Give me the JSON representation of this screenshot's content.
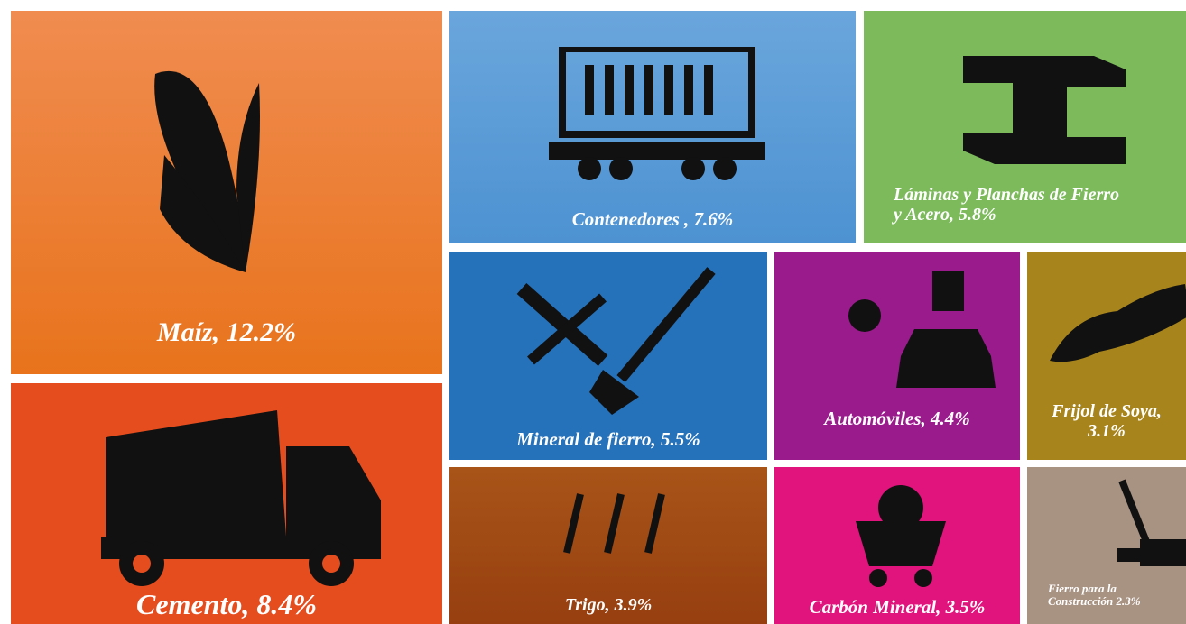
{
  "tiles": [
    {
      "lines": [
        "Maíz, 12.2%"
      ]
    },
    {
      "lines": [
        "Cemento, 8.4%"
      ]
    },
    {
      "lines": [
        "Contenedores , 7.6%"
      ]
    },
    {
      "lines": [
        "Láminas y Planchas de Fierro",
        "y Acero, 5.8%"
      ]
    },
    {
      "lines": [
        "Mineral de fierro, 5.5%"
      ]
    },
    {
      "lines": [
        "Automóviles, 4.4%"
      ]
    },
    {
      "lines": [
        "Frijol de Soya,",
        "3.1%"
      ]
    },
    {
      "lines": [
        "Trigo, 3.9%"
      ]
    },
    {
      "lines": [
        "Carbón Mineral, 3.5%"
      ]
    },
    {
      "lines": [
        "Fierro para la",
        "Construcción 2.3%"
      ]
    }
  ]
}
